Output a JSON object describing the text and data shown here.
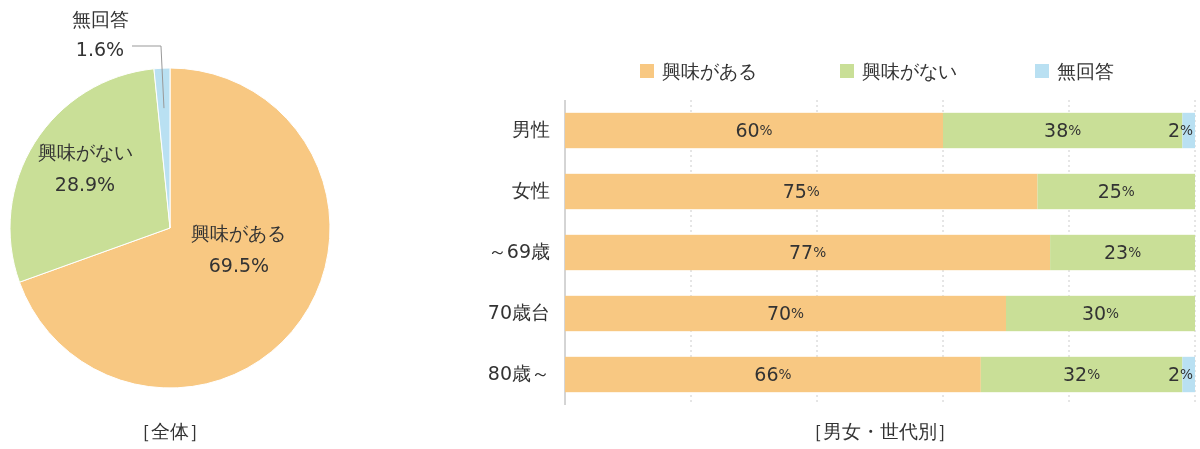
{
  "chart_data": [
    {
      "type": "pie",
      "title": "［全体］",
      "categories": [
        "興味がある",
        "興味がない",
        "無回答"
      ],
      "values": [
        69.5,
        28.9,
        1.6
      ],
      "colors": [
        "#f8c882",
        "#c9df97",
        "#b9e0f2"
      ],
      "value_labels": [
        "69.5%",
        "28.9%",
        "1.6%"
      ]
    },
    {
      "type": "bar",
      "orientation": "horizontal",
      "stacked": true,
      "title": "［男女・世代別］",
      "categories": [
        "男性",
        "女性",
        "～69歳",
        "70歳台",
        "80歳～"
      ],
      "xlim": [
        0,
        100
      ],
      "xticks": [
        {
          "value": 0,
          "label": null
        },
        {
          "value": 20,
          "label": null
        },
        {
          "value": 40,
          "label": null
        },
        {
          "value": 60,
          "label": null
        },
        {
          "value": 80,
          "label": null
        },
        {
          "value": 100,
          "label": null
        }
      ],
      "grid": "x",
      "legend": "top",
      "series": [
        {
          "name": "興味がある",
          "color": "#f8c882",
          "values": [
            60,
            75,
            77,
            70,
            66
          ],
          "value_labels": [
            "60%",
            "75%",
            "77%",
            "70%",
            "66%"
          ]
        },
        {
          "name": "興味がない",
          "color": "#c9df97",
          "values": [
            38,
            25,
            23,
            30,
            32
          ],
          "value_labels": [
            "38%",
            "25%",
            "23%",
            "30%",
            "32%"
          ]
        },
        {
          "name": "無回答",
          "color": "#b9e0f2",
          "values": [
            2,
            null,
            null,
            null,
            2
          ],
          "value_labels": [
            "2%",
            null,
            null,
            null,
            "2%"
          ]
        }
      ]
    }
  ]
}
